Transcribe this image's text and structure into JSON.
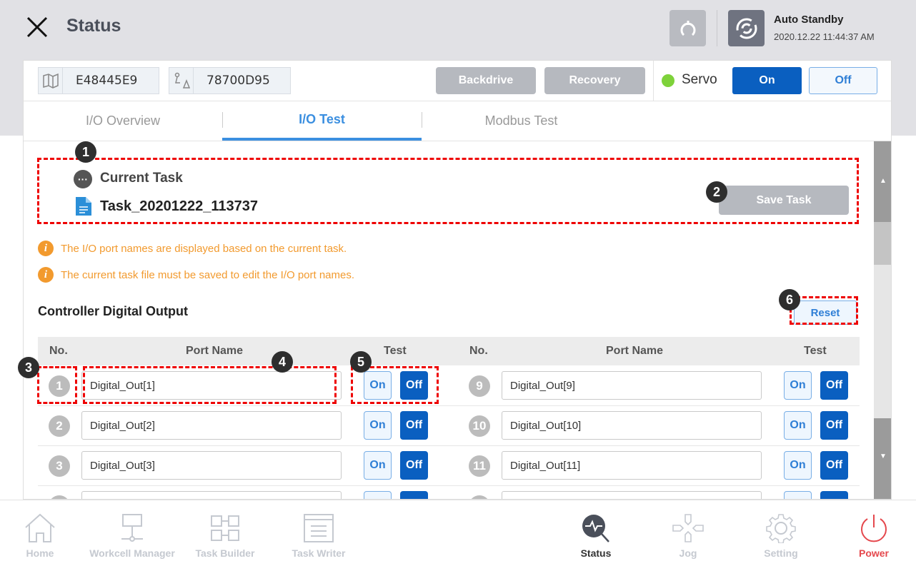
{
  "header": {
    "title": "Status",
    "mode": "Auto Standby",
    "datetime": "2020.12.22 11:44:37 AM"
  },
  "toolbar": {
    "controller_id": "E48445E9",
    "robot_id": "78700D95",
    "backdrive": "Backdrive",
    "recovery": "Recovery",
    "servo_label": "Servo",
    "servo_on": "On",
    "servo_off": "Off",
    "servo_status_color": "#7ed23a"
  },
  "tabs": [
    {
      "label": "I/O Overview"
    },
    {
      "label": "I/O Test",
      "active": true
    },
    {
      "label": "Modbus Test"
    }
  ],
  "task": {
    "heading": "Current Task",
    "name": "Task_20201222_113737",
    "save": "Save Task"
  },
  "notices": [
    "The I/O port names are displayed based on the current task.",
    "The current task file must be saved to edit the I/O port names."
  ],
  "section": {
    "title": "Controller Digital Output",
    "reset": "Reset"
  },
  "table": {
    "headers": {
      "no": "No.",
      "port": "Port Name",
      "test": "Test"
    },
    "rows": [
      {
        "left": {
          "no": "1",
          "port": "Digital_Out[1]"
        },
        "right": {
          "no": "9",
          "port": "Digital_Out[9]"
        }
      },
      {
        "left": {
          "no": "2",
          "port": "Digital_Out[2]"
        },
        "right": {
          "no": "10",
          "port": "Digital_Out[10]"
        }
      },
      {
        "left": {
          "no": "3",
          "port": "Digital_Out[3]"
        },
        "right": {
          "no": "11",
          "port": "Digital_Out[11]"
        }
      }
    ],
    "on": "On",
    "off": "Off"
  },
  "annotations": [
    "1",
    "2",
    "3",
    "4",
    "5",
    "6"
  ],
  "nav": [
    {
      "label": "Home"
    },
    {
      "label": "Workcell Manager"
    },
    {
      "label": "Task Builder"
    },
    {
      "label": "Task Writer"
    },
    {
      "label": "Status",
      "active": true
    },
    {
      "label": "Jog"
    },
    {
      "label": "Setting"
    },
    {
      "label": "Power"
    }
  ]
}
